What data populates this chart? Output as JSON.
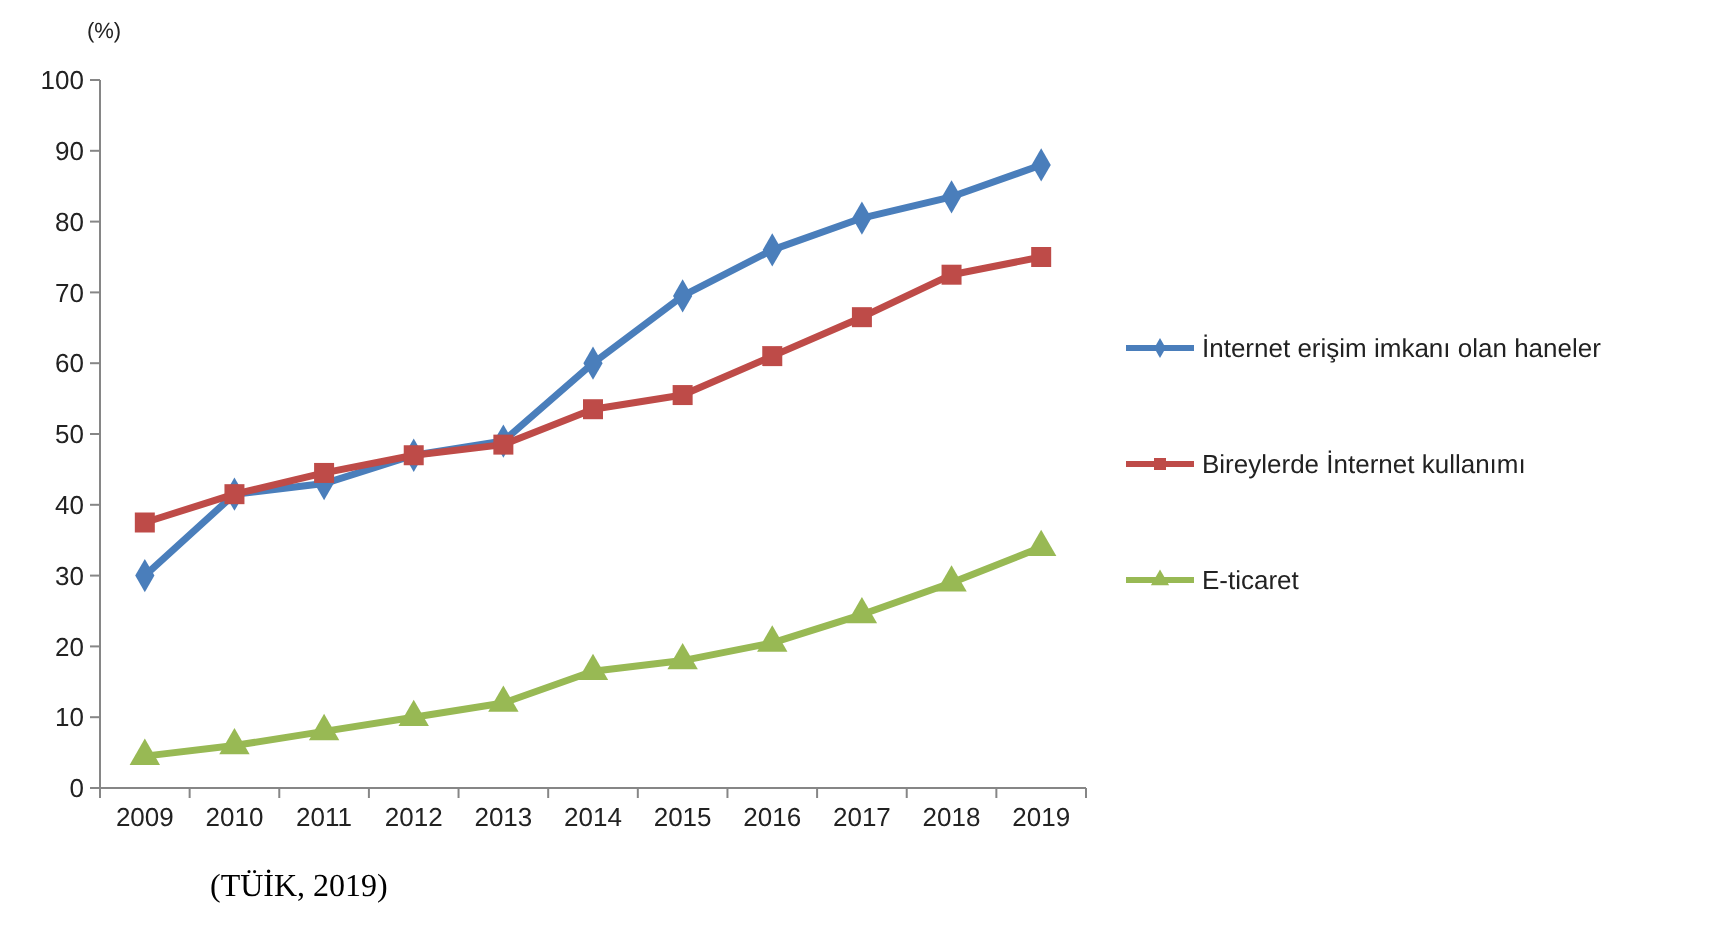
{
  "chart_data": {
    "type": "line",
    "ylabel": "(%)",
    "categories": [
      "2009",
      "2010",
      "2011",
      "2012",
      "2013",
      "2014",
      "2015",
      "2016",
      "2017",
      "2018",
      "2019"
    ],
    "ylim": [
      0,
      100
    ],
    "yticks": [
      0,
      10,
      20,
      30,
      40,
      50,
      60,
      70,
      80,
      90,
      100
    ],
    "grid": false,
    "legend": "right",
    "annotations": [
      "(TÜİK, 2019)"
    ],
    "series": [
      {
        "name": "İnternet erişim imkanı olan haneler",
        "color": "#4a7ebb",
        "marker": "diamond",
        "values": [
          30,
          41.5,
          43,
          47,
          49,
          60,
          69.5,
          76,
          80.5,
          83.5,
          88
        ]
      },
      {
        "name": "Bireylerde İnternet kullanımı",
        "color": "#be4b48",
        "marker": "square",
        "values": [
          37.5,
          41.5,
          44.5,
          47,
          48.5,
          53.5,
          55.5,
          61,
          66.5,
          72.5,
          75
        ]
      },
      {
        "name": "E-ticaret",
        "color": "#98b954",
        "marker": "triangle",
        "values": [
          4.5,
          6,
          8,
          10,
          12,
          16.5,
          18,
          20.5,
          24.5,
          29,
          34
        ]
      }
    ]
  }
}
